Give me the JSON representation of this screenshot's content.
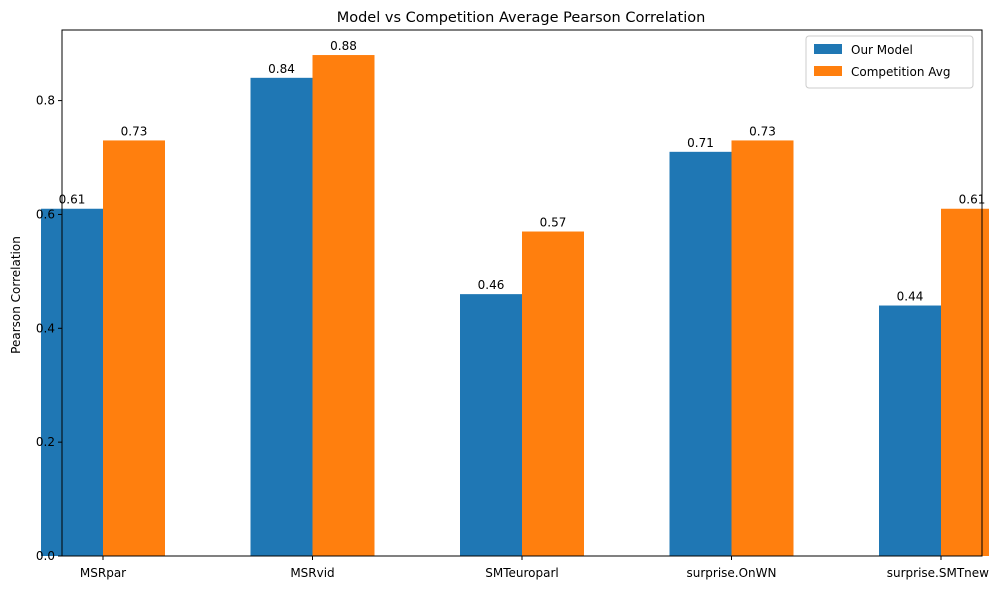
{
  "chart_data": {
    "type": "bar",
    "title": "Model vs Competition Average Pearson Correlation",
    "xlabel": "",
    "ylabel": "Pearson Correlation",
    "categories": [
      "MSRpar",
      "MSRvid",
      "SMTeuroparl",
      "surprise.OnWN",
      "surprise.SMTnews"
    ],
    "series": [
      {
        "name": "Our Model",
        "values": [
          0.61,
          0.84,
          0.46,
          0.71,
          0.44
        ],
        "labels": [
          "0.61",
          "0.84",
          "0.46",
          "0.71",
          "0.44"
        ],
        "color": "#1f77b4"
      },
      {
        "name": "Competition Avg",
        "values": [
          0.73,
          0.88,
          0.57,
          0.73,
          0.61
        ],
        "labels": [
          "0.73",
          "0.88",
          "0.57",
          "0.73",
          "0.61"
        ],
        "color": "#ff7f0e"
      }
    ],
    "ylim": [
      0,
      0.924
    ],
    "yticks": [
      0.0,
      0.2,
      0.4,
      0.6,
      0.8
    ],
    "ytick_labels": [
      "0.0",
      "0.2",
      "0.4",
      "0.6",
      "0.8"
    ],
    "legend": "top-right",
    "grid": false
  }
}
